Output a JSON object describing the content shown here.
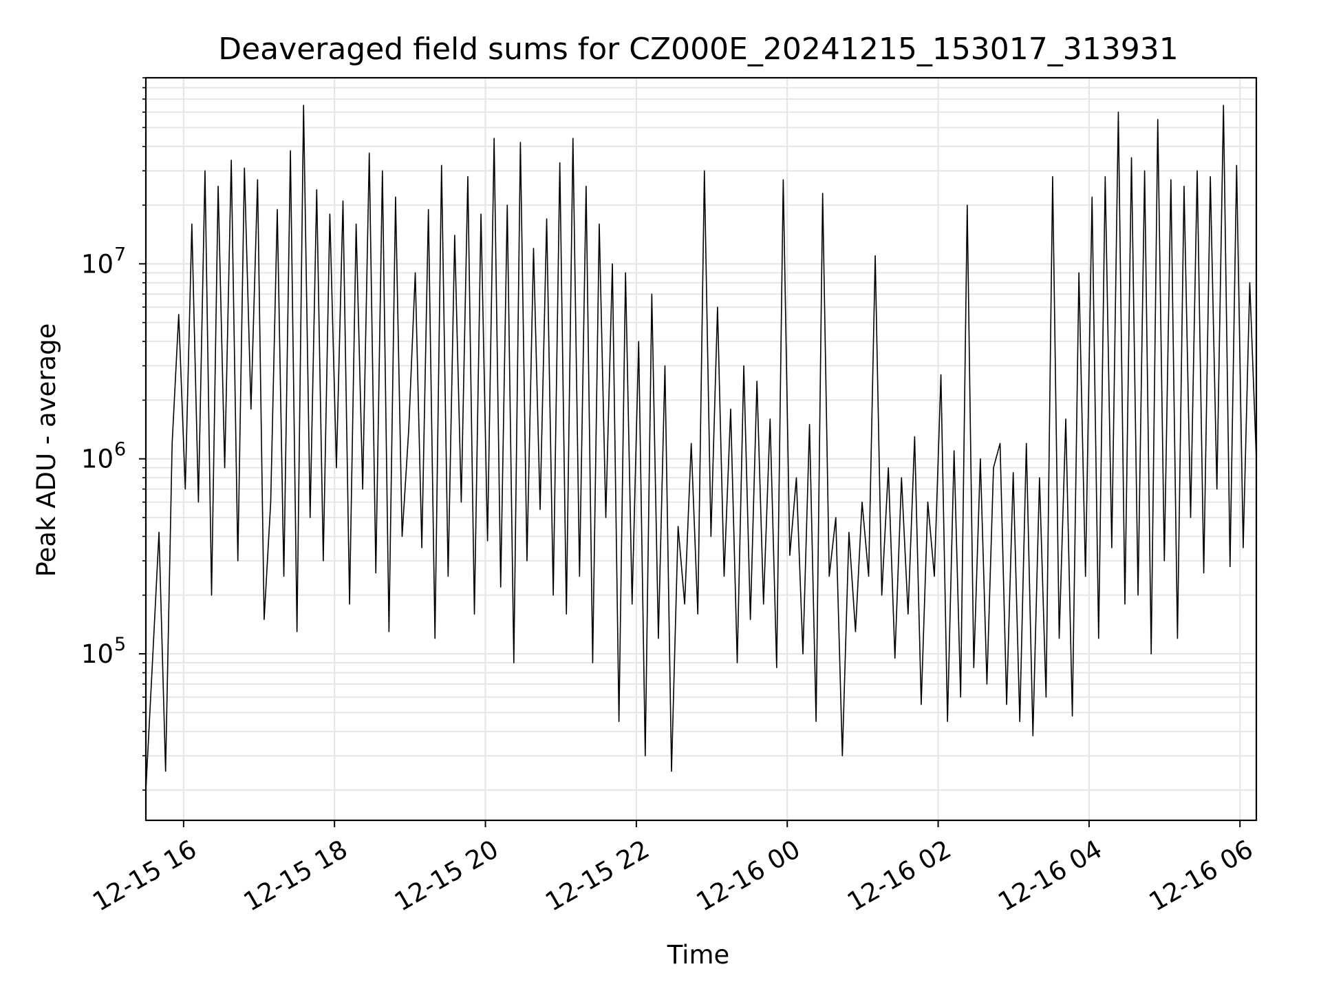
{
  "chart_data": {
    "type": "line",
    "title": "Deaveraged field sums for CZ000E_20241215_153017_313931",
    "xlabel": "Time",
    "ylabel": "Peak ADU - average",
    "yscale": "log",
    "grid": true,
    "line_color": "#000000",
    "grid_color": "#e6e6e6",
    "xlim": [
      "2024-12-15 15:30",
      "2024-12-16 06:13"
    ],
    "ylim": [
      14000,
      90000000
    ],
    "x_ticks": [
      {
        "value": "2024-12-15 16:00",
        "label": "12-15 16"
      },
      {
        "value": "2024-12-15 18:00",
        "label": "12-15 18"
      },
      {
        "value": "2024-12-15 20:00",
        "label": "12-15 20"
      },
      {
        "value": "2024-12-15 22:00",
        "label": "12-15 22"
      },
      {
        "value": "2024-12-16 00:00",
        "label": "12-16 00"
      },
      {
        "value": "2024-12-16 02:00",
        "label": "12-16 02"
      },
      {
        "value": "2024-12-16 04:00",
        "label": "12-16 04"
      },
      {
        "value": "2024-12-16 06:00",
        "label": "12-16 06"
      }
    ],
    "y_ticks": [
      {
        "value": 100000,
        "base": "10",
        "exp": "5"
      },
      {
        "value": 1000000,
        "base": "10",
        "exp": "6"
      },
      {
        "value": 10000000,
        "base": "10",
        "exp": "7"
      }
    ],
    "series": [
      {
        "x_start": "2024-12-15 15:30",
        "x_end": "2024-12-16 06:13",
        "y_estimated": [
          20000,
          90000,
          420000,
          25000,
          1200000,
          5500000,
          700000,
          16000000,
          600000,
          30000000,
          200000,
          25000000,
          900000,
          34000000,
          300000,
          31000000,
          1800000,
          27000000,
          150000,
          600000,
          19000000,
          250000,
          38000000,
          130000,
          65000000,
          500000,
          24000000,
          300000,
          18000000,
          900000,
          21000000,
          180000,
          16000000,
          700000,
          37000000,
          260000,
          30000000,
          130000,
          22000000,
          400000,
          1400000,
          9000000,
          350000,
          19000000,
          120000,
          32000000,
          250000,
          14000000,
          600000,
          28000000,
          160000,
          18000000,
          380000,
          44000000,
          220000,
          20000000,
          90000,
          42000000,
          300000,
          12000000,
          550000,
          17000000,
          200000,
          33000000,
          160000,
          44000000,
          250000,
          25000000,
          90000,
          16000000,
          500000,
          10000000,
          45000,
          9000000,
          180000,
          4000000,
          30000,
          7000000,
          120000,
          3000000,
          25000,
          450000,
          180000,
          1200000,
          160000,
          30000000,
          400000,
          6000000,
          250000,
          1800000,
          90000,
          3000000,
          150000,
          2500000,
          180000,
          1600000,
          85000,
          27000000,
          320000,
          800000,
          100000,
          1500000,
          45000,
          23000000,
          250000,
          500000,
          30000,
          420000,
          130000,
          600000,
          250000,
          11000000,
          200000,
          900000,
          95000,
          800000,
          160000,
          1300000,
          55000,
          600000,
          250000,
          2700000,
          45000,
          1100000,
          60000,
          20000000,
          85000,
          1000000,
          70000,
          900000,
          1200000,
          55000,
          850000,
          45000,
          1200000,
          38000,
          800000,
          60000,
          28000000,
          120000,
          1600000,
          48000,
          9000000,
          250000,
          22000000,
          120000,
          28000000,
          350000,
          60000000,
          180000,
          35000000,
          200000,
          30000000,
          100000,
          55000000,
          300000,
          27000000,
          120000,
          25000000,
          500000,
          30000000,
          260000,
          28000000,
          700000,
          65000000,
          280000,
          32000000,
          350000,
          8000000,
          1000000
        ]
      }
    ]
  }
}
